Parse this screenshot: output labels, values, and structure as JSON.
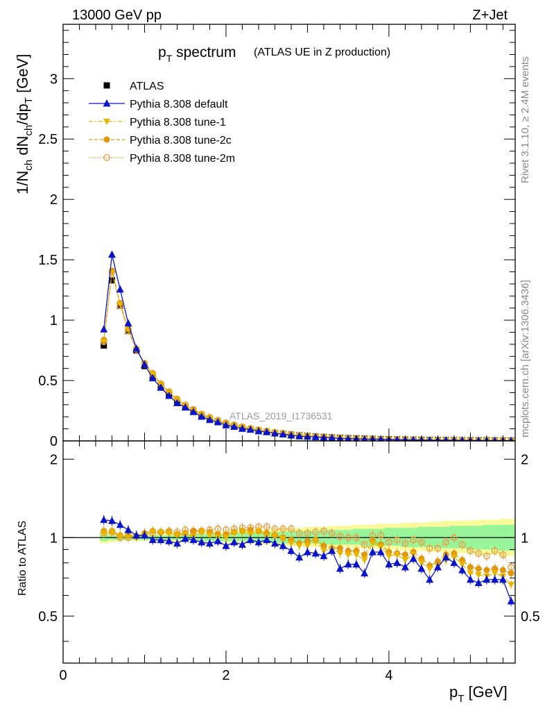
{
  "header": {
    "left": "13000 GeV pp",
    "right": "Z+Jet"
  },
  "side_labels": {
    "rivet": "Rivet 3.1.10, ≥ 2.4M events",
    "mcplots": "mcplots.cern.ch [arXiv:1306.3436]"
  },
  "watermark": "ATLAS_2019_I1736531",
  "title": {
    "main_p": "p",
    "main_sub": "T",
    "main_rest": " spectrum",
    "paren": "(ATLAS UE in Z production)"
  },
  "axes": {
    "ylabel_top": "1/N_ch dN_ch/dp_T [GeV]",
    "ylabel_bottom": "Ratio to ATLAS",
    "xlabel": "p_T [GeV]",
    "top_ticks": [
      "0",
      "0.5",
      "1",
      "1.5",
      "2",
      "2.5",
      "3"
    ],
    "bottom_ticks": [
      "0.5",
      "1",
      "2"
    ],
    "x_ticks": [
      "0",
      "2",
      "4"
    ]
  },
  "colors": {
    "data": "#000000",
    "default": "#0a14c8",
    "tune1": "#e8b400",
    "tune2c": "#e0960a",
    "tune2m": "#e6a44a",
    "band_green": "#99f599",
    "band_yellow": "#fafa9a"
  },
  "legend": [
    {
      "label": "ATLAS",
      "key": "data"
    },
    {
      "label": "Pythia 8.308 default",
      "key": "default"
    },
    {
      "label": "Pythia 8.308 tune-1",
      "key": "tune1"
    },
    {
      "label": "Pythia 8.308 tune-2c",
      "key": "tune2c"
    },
    {
      "label": "Pythia 8.308 tune-2m",
      "key": "tune2m"
    }
  ],
  "chart_data": {
    "type": "scatter",
    "x": [
      0.5,
      0.6,
      0.7,
      0.8,
      0.9,
      1.0,
      1.1,
      1.2,
      1.3,
      1.4,
      1.5,
      1.6,
      1.7,
      1.8,
      1.9,
      2.0,
      2.1,
      2.2,
      2.3,
      2.4,
      2.5,
      2.6,
      2.7,
      2.8,
      2.9,
      3.0,
      3.1,
      3.2,
      3.3,
      3.4,
      3.5,
      3.6,
      3.7,
      3.8,
      3.9,
      4.0,
      4.1,
      4.2,
      4.3,
      4.4,
      4.5,
      4.6,
      4.7,
      4.8,
      4.9,
      5.0,
      5.1,
      5.2,
      5.3,
      5.4,
      5.5
    ],
    "xlim": [
      0,
      5.55
    ],
    "ylim_top": [
      0,
      3.45
    ],
    "ylim_bottom": [
      0.33,
      2.35
    ],
    "ratio_scale": "log",
    "data_values": [
      0.79,
      1.33,
      1.12,
      0.91,
      0.75,
      0.62,
      0.53,
      0.45,
      0.385,
      0.33,
      0.28,
      0.245,
      0.21,
      0.183,
      0.16,
      0.14,
      0.123,
      0.108,
      0.095,
      0.084,
      0.075,
      0.066,
      0.059,
      0.052,
      0.046,
      0.041,
      0.037,
      0.033,
      0.029,
      0.026,
      0.023,
      0.021,
      0.019,
      0.017,
      0.015,
      0.014,
      0.012,
      0.011,
      0.01,
      0.009,
      0.008,
      0.0075,
      0.007,
      0.0065,
      0.006,
      0.0055,
      0.005,
      0.0045,
      0.004,
      0.0036,
      0.0033
    ],
    "series": [
      {
        "name": "Pythia 8.308 default",
        "key": "default",
        "ratio": [
          1.17,
          1.16,
          1.12,
          1.07,
          1.02,
          1.02,
          0.98,
          0.98,
          0.97,
          0.95,
          0.99,
          0.98,
          0.96,
          0.95,
          0.97,
          0.93,
          0.96,
          0.94,
          0.98,
          0.96,
          0.98,
          0.95,
          0.93,
          0.89,
          0.84,
          0.88,
          0.87,
          0.85,
          0.89,
          0.76,
          0.79,
          0.79,
          0.73,
          0.88,
          0.88,
          0.79,
          0.8,
          0.77,
          0.83,
          0.76,
          0.69,
          0.77,
          0.84,
          0.8,
          0.75,
          0.69,
          0.67,
          0.69,
          0.69,
          0.69,
          0.57
        ]
      },
      {
        "name": "Pythia 8.308 tune-1",
        "key": "tune1",
        "ratio": [
          1.04,
          1.05,
          1.01,
          1.01,
          1.01,
          1.02,
          1.05,
          1.04,
          1.04,
          1.02,
          1.03,
          1.01,
          1.05,
          1.02,
          1.0,
          1.0,
          1.04,
          1.05,
          1.03,
          1.06,
          1.01,
          1.02,
          0.99,
          0.95,
          0.93,
          0.93,
          0.97,
          0.89,
          0.9,
          0.87,
          0.86,
          0.86,
          0.82,
          0.95,
          0.92,
          0.85,
          0.86,
          0.82,
          0.86,
          0.8,
          0.76,
          0.78,
          0.82,
          0.84,
          0.79,
          0.73,
          0.72,
          0.71,
          0.73,
          0.71,
          0.66
        ]
      },
      {
        "name": "Pythia 8.308 tune-2c",
        "key": "tune2c",
        "ratio": [
          1.06,
          1.06,
          1.02,
          1.02,
          1.01,
          1.04,
          1.06,
          1.05,
          1.05,
          1.03,
          1.04,
          1.06,
          1.06,
          1.05,
          1.03,
          1.03,
          1.05,
          1.06,
          1.07,
          1.06,
          1.04,
          1.02,
          1.0,
          0.98,
          0.95,
          0.97,
          0.98,
          0.93,
          0.91,
          0.91,
          0.89,
          0.89,
          0.86,
          0.97,
          0.94,
          0.88,
          0.87,
          0.86,
          0.88,
          0.83,
          0.78,
          0.81,
          0.86,
          0.87,
          0.82,
          0.77,
          0.76,
          0.75,
          0.76,
          0.75,
          0.73
        ]
      },
      {
        "name": "Pythia 8.308 tune-2m",
        "key": "tune2m",
        "ratio": [
          1.04,
          1.05,
          1.0,
          1.0,
          1.01,
          1.02,
          1.04,
          1.05,
          1.06,
          1.05,
          1.07,
          1.06,
          1.06,
          1.07,
          1.08,
          1.07,
          1.08,
          1.09,
          1.09,
          1.1,
          1.1,
          1.08,
          1.08,
          1.08,
          1.04,
          1.04,
          1.05,
          1.06,
          1.04,
          1.01,
          1.0,
          1.0,
          0.94,
          1.02,
          1.02,
          0.96,
          0.98,
          0.95,
          0.98,
          0.96,
          0.91,
          0.91,
          0.96,
          1.0,
          0.94,
          0.89,
          0.87,
          0.85,
          0.89,
          0.86,
          0.77
        ]
      }
    ],
    "band_yellow": [
      [
        0.95,
        1.05
      ],
      [
        0.96,
        1.04
      ],
      [
        0.97,
        1.03
      ],
      [
        0.97,
        1.03
      ],
      [
        0.97,
        1.03
      ],
      [
        0.97,
        1.03
      ],
      [
        0.97,
        1.03
      ],
      [
        0.97,
        1.03
      ],
      [
        0.96,
        1.04
      ],
      [
        0.96,
        1.04
      ],
      [
        0.96,
        1.04
      ],
      [
        0.96,
        1.04
      ],
      [
        0.96,
        1.05
      ],
      [
        0.96,
        1.05
      ],
      [
        0.96,
        1.05
      ],
      [
        0.95,
        1.05
      ],
      [
        0.95,
        1.06
      ],
      [
        0.95,
        1.06
      ],
      [
        0.95,
        1.06
      ],
      [
        0.94,
        1.07
      ],
      [
        0.94,
        1.07
      ],
      [
        0.94,
        1.08
      ],
      [
        0.93,
        1.09
      ],
      [
        0.93,
        1.09
      ],
      [
        0.93,
        1.09
      ],
      [
        0.93,
        1.1
      ],
      [
        0.92,
        1.1
      ],
      [
        0.92,
        1.1
      ],
      [
        0.92,
        1.11
      ],
      [
        0.92,
        1.11
      ],
      [
        0.92,
        1.11
      ],
      [
        0.91,
        1.12
      ],
      [
        0.91,
        1.12
      ],
      [
        0.91,
        1.12
      ],
      [
        0.9,
        1.13
      ],
      [
        0.9,
        1.13
      ],
      [
        0.9,
        1.13
      ],
      [
        0.89,
        1.14
      ],
      [
        0.89,
        1.14
      ],
      [
        0.89,
        1.14
      ],
      [
        0.88,
        1.15
      ],
      [
        0.88,
        1.15
      ],
      [
        0.88,
        1.16
      ],
      [
        0.87,
        1.16
      ],
      [
        0.87,
        1.16
      ],
      [
        0.87,
        1.16
      ],
      [
        0.86,
        1.17
      ],
      [
        0.86,
        1.17
      ],
      [
        0.86,
        1.17
      ],
      [
        0.85,
        1.18
      ],
      [
        0.85,
        1.18
      ]
    ],
    "band_green": [
      [
        0.97,
        1.03
      ],
      [
        0.98,
        1.02
      ],
      [
        0.98,
        1.02
      ],
      [
        0.98,
        1.02
      ],
      [
        0.98,
        1.02
      ],
      [
        0.98,
        1.02
      ],
      [
        0.98,
        1.02
      ],
      [
        0.98,
        1.02
      ],
      [
        0.98,
        1.02
      ],
      [
        0.98,
        1.02
      ],
      [
        0.98,
        1.03
      ],
      [
        0.98,
        1.03
      ],
      [
        0.97,
        1.03
      ],
      [
        0.97,
        1.03
      ],
      [
        0.97,
        1.03
      ],
      [
        0.97,
        1.03
      ],
      [
        0.97,
        1.04
      ],
      [
        0.97,
        1.04
      ],
      [
        0.96,
        1.04
      ],
      [
        0.96,
        1.04
      ],
      [
        0.96,
        1.05
      ],
      [
        0.96,
        1.05
      ],
      [
        0.95,
        1.05
      ],
      [
        0.95,
        1.06
      ],
      [
        0.95,
        1.06
      ],
      [
        0.95,
        1.06
      ],
      [
        0.95,
        1.06
      ],
      [
        0.94,
        1.07
      ],
      [
        0.94,
        1.07
      ],
      [
        0.94,
        1.07
      ],
      [
        0.94,
        1.07
      ],
      [
        0.94,
        1.08
      ],
      [
        0.93,
        1.08
      ],
      [
        0.93,
        1.08
      ],
      [
        0.93,
        1.08
      ],
      [
        0.93,
        1.09
      ],
      [
        0.93,
        1.09
      ],
      [
        0.92,
        1.09
      ],
      [
        0.92,
        1.09
      ],
      [
        0.92,
        1.1
      ],
      [
        0.92,
        1.1
      ],
      [
        0.91,
        1.1
      ],
      [
        0.91,
        1.1
      ],
      [
        0.91,
        1.11
      ],
      [
        0.91,
        1.11
      ],
      [
        0.9,
        1.11
      ],
      [
        0.9,
        1.11
      ],
      [
        0.9,
        1.12
      ],
      [
        0.9,
        1.12
      ],
      [
        0.89,
        1.12
      ],
      [
        0.89,
        1.12
      ]
    ]
  }
}
